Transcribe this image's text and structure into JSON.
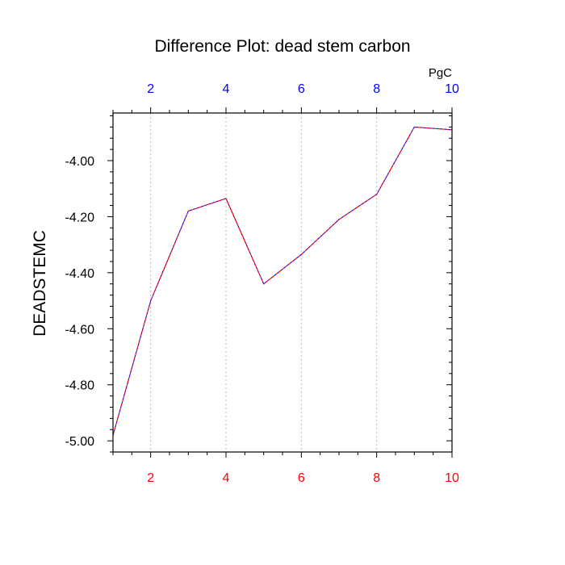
{
  "chart_data": {
    "type": "line",
    "title": "Difference Plot: dead stem carbon",
    "units": "PgC",
    "ylabel": "DEADSTEMC",
    "xlim": [
      1,
      10
    ],
    "ylim": [
      -5.04,
      -3.83
    ],
    "x_ticks": [
      "2",
      "4",
      "6",
      "8",
      "10"
    ],
    "x_tick_values": [
      2,
      4,
      6,
      8,
      10
    ],
    "y_ticks": [
      "-5.00",
      "-4.80",
      "-4.60",
      "-4.40",
      "-4.20",
      "-4.00"
    ],
    "y_tick_values": [
      -5.0,
      -4.8,
      -4.6,
      -4.4,
      -4.2,
      -4.0
    ],
    "grid": "vertical dashed at major x ticks",
    "colors": {
      "bottom_tick_labels": "#ff0000",
      "top_tick_labels": "#0000ff",
      "line_primary": "#ff0000",
      "line_secondary": "#0000ff",
      "grid": "#b4b4b4"
    },
    "series": [
      {
        "x": [
          1,
          2,
          3,
          4,
          5,
          6,
          7,
          8,
          9,
          10
        ],
        "values": [
          -4.98,
          -4.5,
          -4.18,
          -4.135,
          -4.44,
          -4.335,
          -4.21,
          -4.12,
          -3.88,
          -3.89
        ]
      }
    ]
  }
}
